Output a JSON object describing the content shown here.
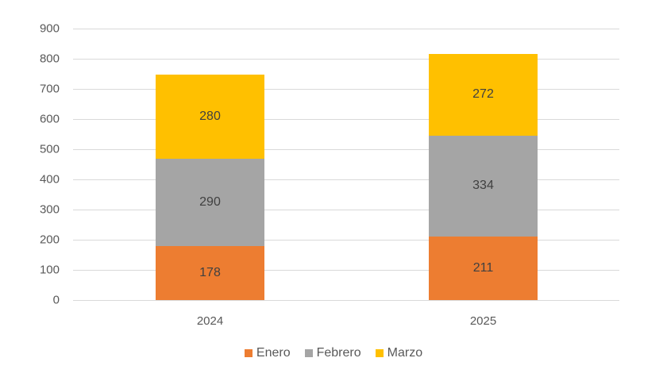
{
  "chart_data": {
    "type": "bar",
    "stacked": true,
    "title": "",
    "xlabel": "",
    "ylabel": "",
    "categories": [
      "2024",
      "2025"
    ],
    "series": [
      {
        "name": "Enero",
        "values": [
          178,
          211
        ],
        "color": "#ED7D31"
      },
      {
        "name": "Febrero",
        "values": [
          290,
          334
        ],
        "color": "#A5A5A5"
      },
      {
        "name": "Marzo",
        "values": [
          280,
          272
        ],
        "color": "#FFC000"
      }
    ],
    "ylim": [
      0,
      900
    ],
    "yticks": [
      "0",
      "100",
      "200",
      "300",
      "400",
      "500",
      "600",
      "700",
      "800",
      "900"
    ],
    "grid": true,
    "legend_position": "bottom",
    "data_labels": true
  },
  "legend": {
    "items": [
      "Enero",
      "Febrero",
      "Marzo"
    ]
  }
}
